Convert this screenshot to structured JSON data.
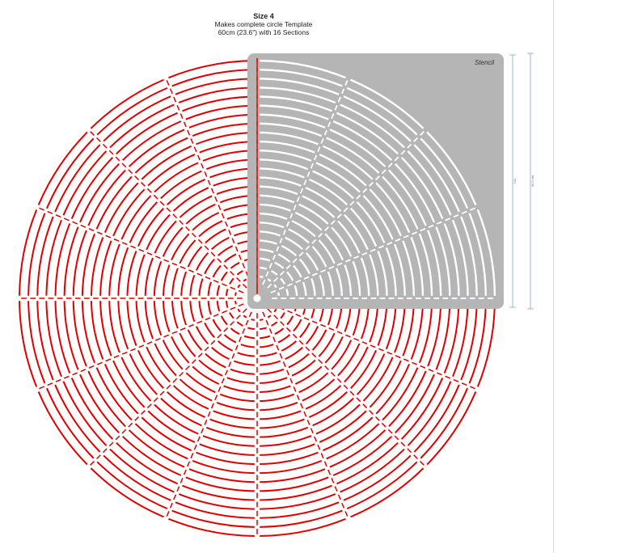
{
  "header": {
    "title": "Size 4",
    "line1": "Makes complete circle Template",
    "line2": "60cm (23.6\") with 16 Sections"
  },
  "stencil": {
    "label": "Stencil",
    "dim_inner": "≈31",
    "dim_outer": "30.5 cm"
  },
  "template": {
    "sections": 16,
    "rings": 26,
    "colors": {
      "full_circle": "#e00000",
      "stencil_panel": "#b5b5b5",
      "stencil_cuts": "#ffffff",
      "dimension_line": "#5a88b8"
    }
  }
}
